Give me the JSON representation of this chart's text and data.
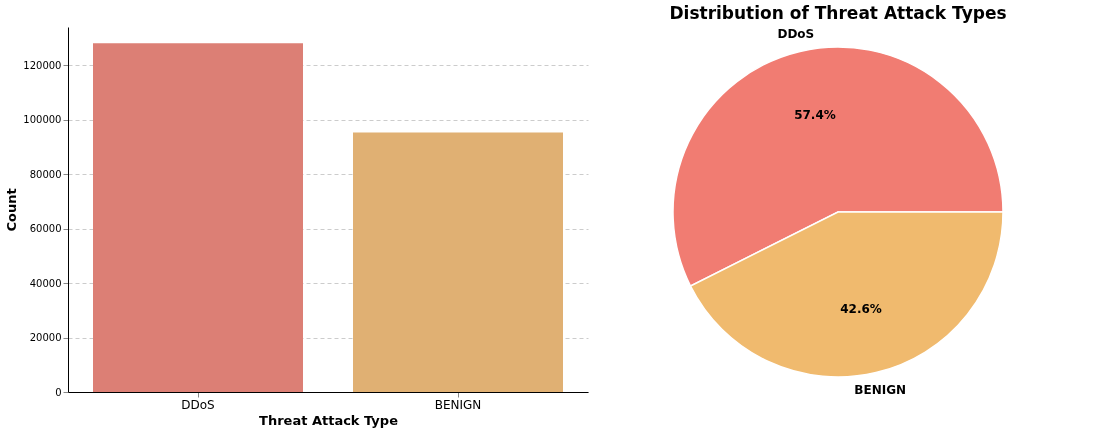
{
  "chart_data": [
    {
      "type": "bar",
      "xlabel": "Threat Attack Type",
      "ylabel": "Count",
      "categories": [
        "DDoS",
        "BENIGN"
      ],
      "values": [
        128000,
        95300
      ],
      "colors": [
        "#dc7f75",
        "#e0b073"
      ],
      "ylim": [
        0,
        134000
      ],
      "yticks": [
        0,
        20000,
        40000,
        60000,
        80000,
        100000,
        120000
      ],
      "grid": "y",
      "legend": false
    },
    {
      "type": "pie",
      "title": "Distribution of Threat Attack Types",
      "categories": [
        "DDoS",
        "BENIGN"
      ],
      "values": [
        57.4,
        42.6
      ],
      "colors": [
        "#f17c72",
        "#f0ba6e"
      ],
      "value_labels": [
        "57.4%",
        "42.6%"
      ],
      "legend": false
    }
  ]
}
